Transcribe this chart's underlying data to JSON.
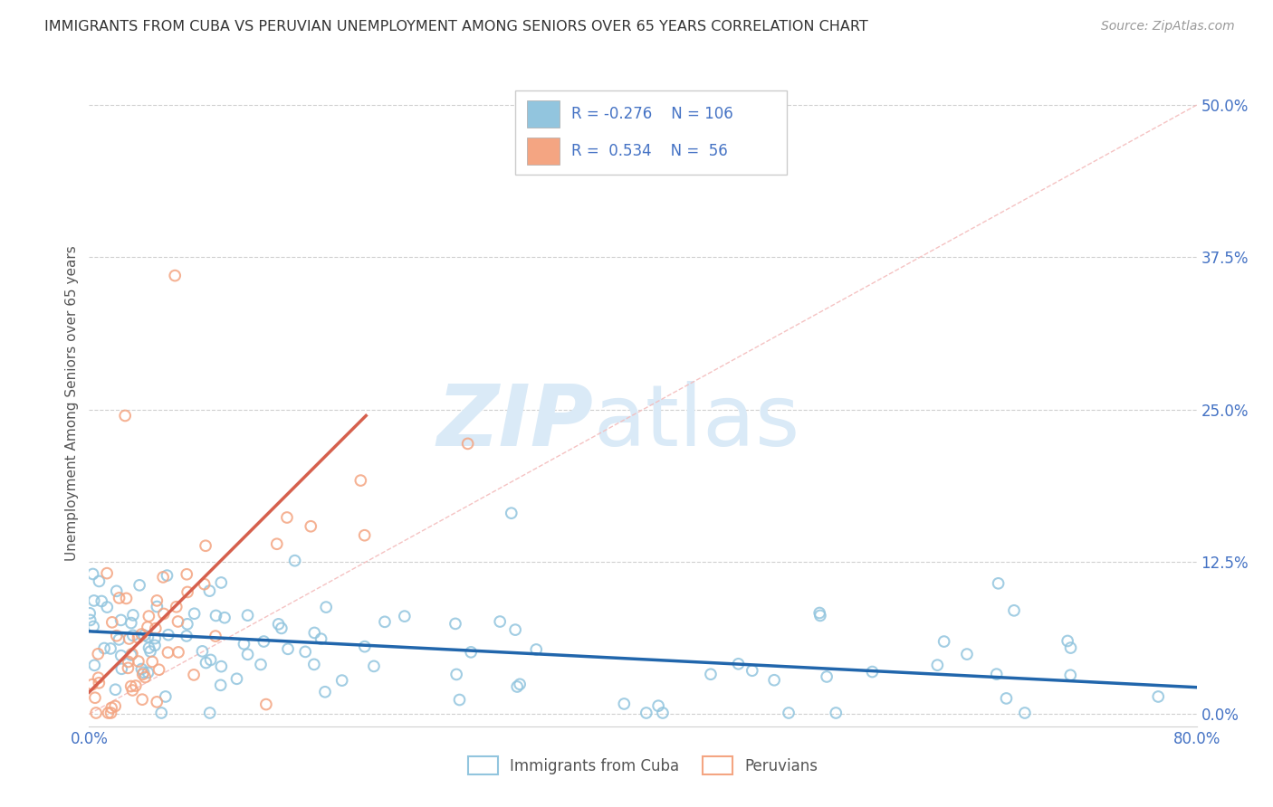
{
  "title": "IMMIGRANTS FROM CUBA VS PERUVIAN UNEMPLOYMENT AMONG SENIORS OVER 65 YEARS CORRELATION CHART",
  "source": "Source: ZipAtlas.com",
  "ylabel": "Unemployment Among Seniors over 65 years",
  "xlim": [
    0.0,
    0.8
  ],
  "ylim": [
    -0.01,
    0.52
  ],
  "blue_color": "#92c5de",
  "pink_color": "#f4a582",
  "blue_edge_color": "#6baed6",
  "pink_edge_color": "#f4a582",
  "blue_line_color": "#2166ac",
  "pink_line_color": "#d6604d",
  "diag_line_color": "#f4bcbc",
  "blue_R": -0.276,
  "blue_N": 106,
  "pink_R": 0.534,
  "pink_N": 56,
  "legend_label_blue": "Immigrants from Cuba",
  "legend_label_pink": "Peruvians",
  "title_color": "#333333",
  "axis_tick_color": "#4472c4",
  "ylabel_color": "#555555",
  "grid_color": "#d0d0d0",
  "source_color": "#999999",
  "yticks": [
    0.0,
    0.125,
    0.25,
    0.375,
    0.5
  ],
  "ytick_labels": [
    "0.0%",
    "12.5%",
    "25.0%",
    "37.5%",
    "50.0%"
  ],
  "xtick_labels": [
    "0.0%",
    "80.0%"
  ],
  "xticks": [
    0.0,
    0.8
  ],
  "blue_trend_x0": 0.0,
  "blue_trend_y0": 0.068,
  "blue_trend_x1": 0.8,
  "blue_trend_y1": 0.022,
  "pink_trend_x0": 0.0,
  "pink_trend_y0": 0.018,
  "pink_trend_x1": 0.2,
  "pink_trend_y1": 0.245
}
